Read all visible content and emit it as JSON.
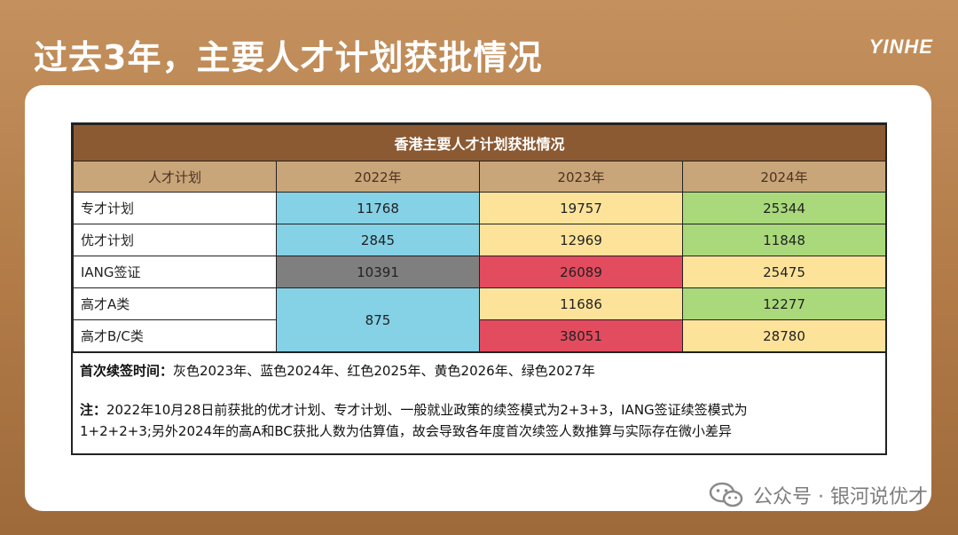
{
  "title": "过去3年，主要人才计划获批情况",
  "logo": "YINHE",
  "table": {
    "caption": "香港主要人才计划获批情况",
    "headers": [
      "人才计划",
      "2022年",
      "2023年",
      "2024年"
    ],
    "rows": [
      {
        "name": "专才计划",
        "y2022": "11768",
        "y2023": "19757",
        "y2024": "25344"
      },
      {
        "name": "优才计划",
        "y2022": "2845",
        "y2023": "12969",
        "y2024": "11848"
      },
      {
        "name": "IANG签证",
        "y2022": "10391",
        "y2023": "26089",
        "y2024": "25475"
      },
      {
        "name": "高才A类",
        "y2022": "875",
        "y2023": "11686",
        "y2024": "12277"
      },
      {
        "name": "高才B/C类",
        "y2023": "38051",
        "y2024": "28780"
      }
    ],
    "cell_colors": {
      "gray": "#7f7f7f",
      "blue": "#85d1e6",
      "red": "#e34b5f",
      "yellow": "#fde39a",
      "green": "#a9d97b"
    }
  },
  "notes": {
    "first_label": "首次续签时间：",
    "first_text": "灰色2023年、蓝色2024年、红色2025年、黄色2026年、绿色2027年",
    "note_label": "注：",
    "note_line1": "2022年10月28日前获批的优才计划、专才计划、一般就业政策的续签模式为2+3+3，IANG签证续签模式为",
    "note_line2": "1+2+2+3;另外2024年的高A和BC获批人数为估算值，故会导致各年度首次续签人数推算与实际存在微小差异"
  },
  "watermark": {
    "icon": "wechat-icon",
    "text": "公众号 · 银河说优才"
  }
}
